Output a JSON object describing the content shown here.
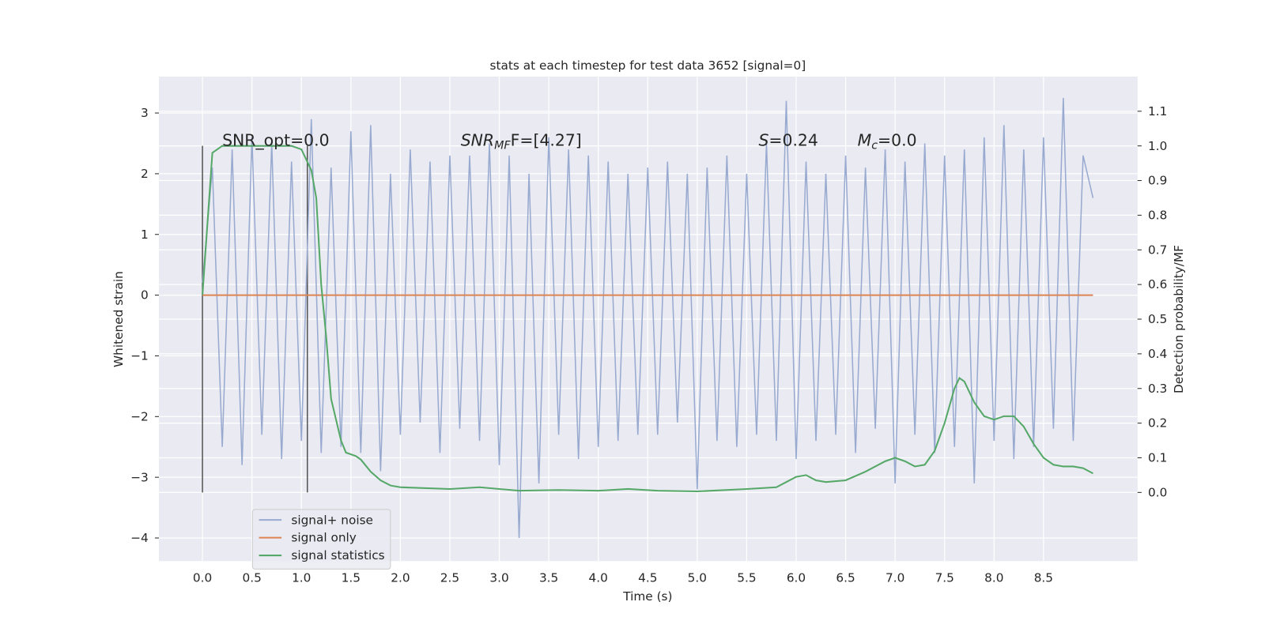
{
  "chart_data": {
    "type": "line",
    "title": "stats at each timestep for test data 3652 [signal=0]",
    "xlabel": "Time (s)",
    "ylabel": "Whitened strain",
    "y2label": "Detection probability/MF",
    "xlim": [
      -0.44,
      9.45
    ],
    "ylim": [
      -4.38,
      3.6
    ],
    "y2lim": [
      -0.198,
      1.2
    ],
    "xticks": [
      {
        "value": 0,
        "label": "0.0"
      },
      0.5,
      {
        "value": 1,
        "label": "1.0"
      },
      1.5,
      {
        "value": 2,
        "label": "2.0"
      },
      2.5,
      {
        "value": 3,
        "label": "3.0"
      },
      3.5,
      {
        "value": 4,
        "label": "4.0"
      },
      4.5,
      {
        "value": 5,
        "label": "5.0"
      },
      5.5,
      {
        "value": 6,
        "label": "6.0"
      },
      6.5,
      {
        "value": 7,
        "label": "7.0"
      },
      7.5,
      {
        "value": 8,
        "label": "8.0"
      },
      8.5
    ],
    "yticks": [
      {
        "value": -4,
        "label": "−4"
      },
      {
        "value": -3,
        "label": "−3"
      },
      {
        "value": -2,
        "label": "−2"
      },
      {
        "value": -1,
        "label": "−1"
      },
      0,
      1,
      2,
      3
    ],
    "y2ticks": [
      {
        "value": 0,
        "label": "0.0"
      },
      0.1,
      0.2,
      0.3,
      0.4,
      0.5,
      0.6,
      0.7,
      0.8,
      0.9,
      {
        "value": 1,
        "label": "1.0"
      },
      1.1
    ],
    "grid": true,
    "background": "#eaeaf2",
    "legend": "lower left",
    "series": [
      {
        "name": "signal+ noise",
        "color": "#98aad0",
        "x": [
          0,
          0.1,
          0.2,
          0.3,
          0.4,
          0.5,
          0.6,
          0.7,
          0.8,
          0.9,
          1,
          1.1,
          1.2,
          1.3,
          1.4,
          1.5,
          1.6,
          1.7,
          1.8,
          1.9,
          2,
          2.1,
          2.2,
          2.3,
          2.4,
          2.5,
          2.6,
          2.7,
          2.8,
          2.9,
          3,
          3.1,
          3.2,
          3.3,
          3.4,
          3.5,
          3.6,
          3.7,
          3.8,
          3.9,
          4,
          4.1,
          4.2,
          4.3,
          4.4,
          4.5,
          4.6,
          4.7,
          4.8,
          4.9,
          5,
          5.1,
          5.2,
          5.3,
          5.4,
          5.5,
          5.6,
          5.7,
          5.8,
          5.9,
          6,
          6.1,
          6.2,
          6.3,
          6.4,
          6.5,
          6.6,
          6.7,
          6.8,
          6.9,
          7,
          7.1,
          7.2,
          7.3,
          7.4,
          7.5,
          7.6,
          7.7,
          7.8,
          7.9,
          8,
          8.1,
          8.2,
          8.3,
          8.4,
          8.5,
          8.6,
          8.7,
          8.8,
          8.9,
          9
        ],
        "values": [
          0.2,
          2.1,
          -2.5,
          2.4,
          -2.8,
          2.6,
          -2.3,
          2.5,
          -2.7,
          2.2,
          -2.4,
          2.9,
          -2.6,
          2.1,
          -2.5,
          2.7,
          -2.6,
          2.8,
          -2.9,
          2.0,
          -2.3,
          2.4,
          -2.1,
          2.2,
          -2.6,
          2.3,
          -2.2,
          2.3,
          -2.4,
          2.5,
          -2.8,
          2.3,
          -4.0,
          2.0,
          -3.1,
          2.6,
          -2.3,
          2.4,
          -2.7,
          2.3,
          -2.5,
          2.2,
          -2.4,
          2.0,
          -2.3,
          2.1,
          -2.3,
          2.2,
          -2.1,
          2.0,
          -3.2,
          2.1,
          -2.4,
          2.3,
          -2.5,
          2.0,
          -2.3,
          2.5,
          -2.4,
          3.2,
          -2.7,
          2.2,
          -2.4,
          2.0,
          -2.3,
          2.3,
          -2.6,
          2.1,
          -2.2,
          2.4,
          -3.1,
          2.2,
          -2.3,
          2.5,
          -2.6,
          2.3,
          -2.5,
          2.4,
          -3.1,
          2.6,
          -2.4,
          2.8,
          -2.7,
          2.4,
          -2.5,
          2.6,
          -2.2,
          3.25,
          -2.4,
          2.3,
          1.6
        ]
      },
      {
        "name": "signal only",
        "color": "#dd8452",
        "x": [
          0,
          9
        ],
        "values": [
          0,
          0
        ]
      },
      {
        "name": "signal statistics",
        "color": "#55a868",
        "axis": "y2",
        "x": [
          0,
          0.1,
          0.2,
          0.5,
          0.9,
          1.0,
          1.1,
          1.15,
          1.2,
          1.25,
          1.3,
          1.4,
          1.45,
          1.55,
          1.6,
          1.7,
          1.8,
          1.9,
          2.0,
          2.5,
          2.8,
          3.2,
          3.6,
          4.0,
          4.3,
          4.6,
          5.0,
          5.5,
          5.8,
          5.9,
          6.0,
          6.1,
          6.2,
          6.3,
          6.5,
          6.7,
          6.9,
          7.0,
          7.1,
          7.2,
          7.3,
          7.4,
          7.5,
          7.6,
          7.65,
          7.7,
          7.8,
          7.9,
          8.0,
          8.1,
          8.2,
          8.3,
          8.4,
          8.5,
          8.6,
          8.7,
          8.8,
          8.9,
          9.0
        ],
        "values": [
          0.57,
          0.98,
          1.0,
          1.0,
          1.0,
          0.99,
          0.93,
          0.85,
          0.6,
          0.45,
          0.27,
          0.15,
          0.115,
          0.105,
          0.095,
          0.06,
          0.035,
          0.02,
          0.015,
          0.01,
          0.015,
          0.005,
          0.007,
          0.005,
          0.01,
          0.005,
          0.003,
          0.01,
          0.015,
          0.03,
          0.045,
          0.05,
          0.035,
          0.03,
          0.035,
          0.06,
          0.09,
          0.1,
          0.09,
          0.075,
          0.08,
          0.12,
          0.2,
          0.3,
          0.33,
          0.32,
          0.26,
          0.22,
          0.21,
          0.22,
          0.22,
          0.19,
          0.14,
          0.1,
          0.08,
          0.075,
          0.075,
          0.07,
          0.055
        ]
      }
    ],
    "vlines": {
      "x": [
        0,
        1.06
      ],
      "ymin": 0,
      "ymax": 1,
      "axis": "y2",
      "color": "#555555"
    },
    "annotations": [
      {
        "x": 0.2,
        "y": 1.0,
        "parts": [
          {
            "text": "SNR_opt=0.0"
          }
        ]
      },
      {
        "x": 2.61,
        "y": 1.0,
        "parts": [
          {
            "text": "SNR",
            "style": "italic"
          },
          {
            "text": "MF",
            "style": "italic-sub"
          },
          {
            "text": "F=[4.27]"
          }
        ]
      },
      {
        "x": 5.62,
        "y": 1.0,
        "parts": [
          {
            "text": "S",
            "style": "italic"
          },
          {
            "text": "=0.24"
          }
        ]
      },
      {
        "x": 6.62,
        "y": 1.0,
        "parts": [
          {
            "text": "M",
            "style": "italic"
          },
          {
            "text": "c",
            "style": "italic-sub"
          },
          {
            "text": "=0.0"
          }
        ]
      }
    ]
  }
}
